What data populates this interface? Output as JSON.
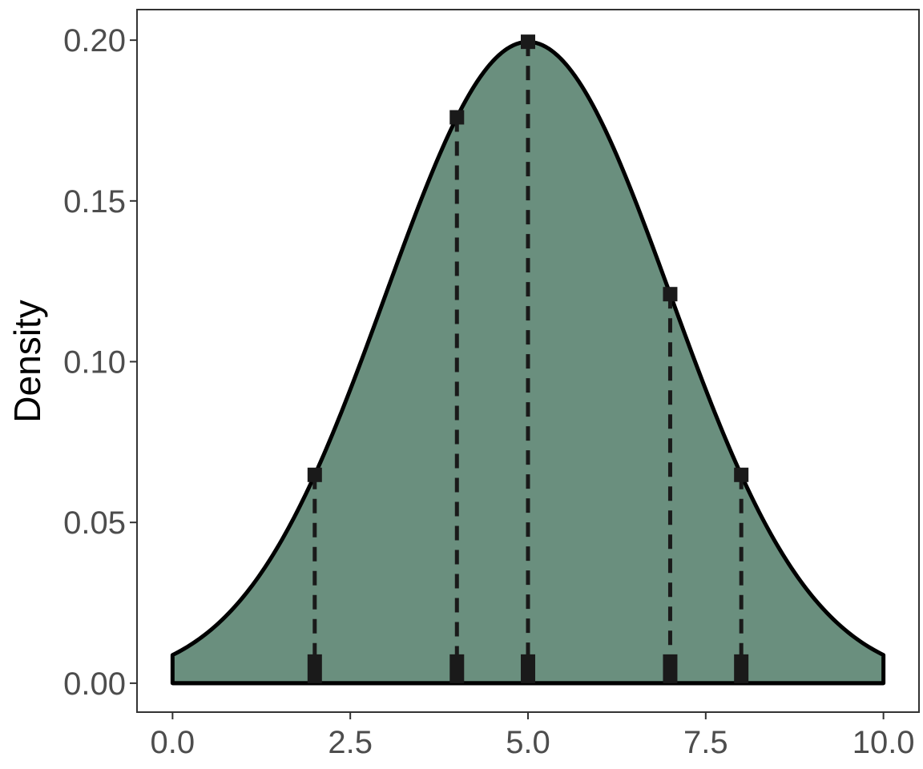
{
  "chart_data": {
    "type": "area",
    "title": "",
    "xlabel": "",
    "ylabel": "Density",
    "xlim": [
      -0.5,
      10.5
    ],
    "ylim": [
      -0.009,
      0.2095
    ],
    "x_ticks": [
      0.0,
      2.5,
      5.0,
      7.5,
      10.0
    ],
    "x_tick_labels": [
      "0.0",
      "2.5",
      "5.0",
      "7.5",
      "10.0"
    ],
    "y_ticks": [
      0.0,
      0.05,
      0.1,
      0.15,
      0.2
    ],
    "y_tick_labels": [
      "0.00",
      "0.05",
      "0.10",
      "0.15",
      "0.20"
    ],
    "grid": false,
    "curve": {
      "distribution": "normal",
      "mean": 5,
      "sd": 2,
      "x_range": [
        0,
        10
      ]
    },
    "marked_points": [
      {
        "x": 2,
        "y": 0.0648
      },
      {
        "x": 4,
        "y": 0.176
      },
      {
        "x": 5,
        "y": 0.1995
      },
      {
        "x": 7,
        "y": 0.121
      },
      {
        "x": 8,
        "y": 0.0648
      }
    ],
    "colors": {
      "fill": "#6a8f7e",
      "line": "#000000",
      "marker": "#1a1a1a"
    }
  }
}
